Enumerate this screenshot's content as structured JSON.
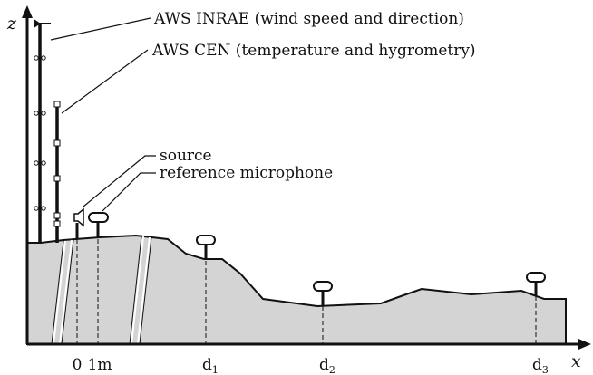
{
  "axes": {
    "z": "z",
    "x": "x"
  },
  "labels": {
    "aws_inrae": "AWS INRAE (wind speed and direction)",
    "aws_cen": "AWS CEN (temperature and hygrometry)",
    "source": "source",
    "reference_microphone": "reference microphone"
  },
  "positions": [
    {
      "label": "0"
    },
    {
      "label": "1m"
    },
    {
      "label": "d",
      "sub": "1"
    },
    {
      "label": "d",
      "sub": "2"
    },
    {
      "label": "d",
      "sub": "3"
    }
  ]
}
